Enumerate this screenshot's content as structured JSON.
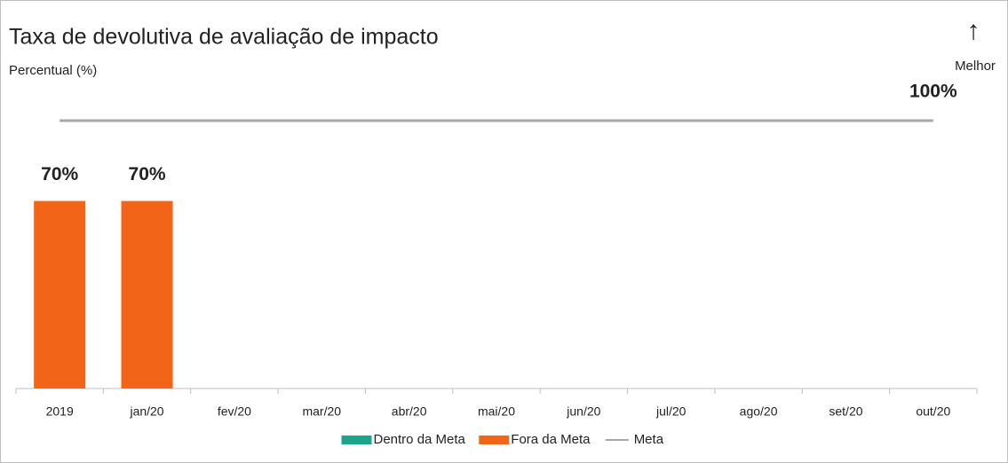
{
  "chart_data": {
    "type": "bar",
    "title": "Taxa de devolutiva de avaliação de impacto",
    "subtitle": "Percentual (%)",
    "annotation": {
      "arrow": "↑",
      "text": "Melhor"
    },
    "categories": [
      "2019",
      "jan/20",
      "fev/20",
      "mar/20",
      "abr/20",
      "mai/20",
      "jun/20",
      "jul/20",
      "ago/20",
      "set/20",
      "out/20"
    ],
    "series": [
      {
        "name": "Dentro da Meta",
        "color": "#1aa58c",
        "values": [
          null,
          null,
          null,
          null,
          null,
          null,
          null,
          null,
          null,
          null,
          null
        ]
      },
      {
        "name": "Fora da Meta",
        "color": "#f26417",
        "values": [
          70,
          70,
          null,
          null,
          null,
          null,
          null,
          null,
          null,
          null,
          null
        ],
        "value_labels": [
          "70%",
          "70%",
          null,
          null,
          null,
          null,
          null,
          null,
          null,
          null,
          null
        ]
      },
      {
        "name": "Meta",
        "color": "#a6a6a6",
        "type": "line",
        "values": [
          100,
          100,
          100,
          100,
          100,
          100,
          100,
          100,
          100,
          100,
          100
        ],
        "value_labels": [
          null,
          null,
          null,
          null,
          null,
          null,
          null,
          null,
          null,
          null,
          "100%"
        ]
      }
    ],
    "ylim": [
      0,
      100
    ],
    "grid": false,
    "legend": "bottom"
  }
}
